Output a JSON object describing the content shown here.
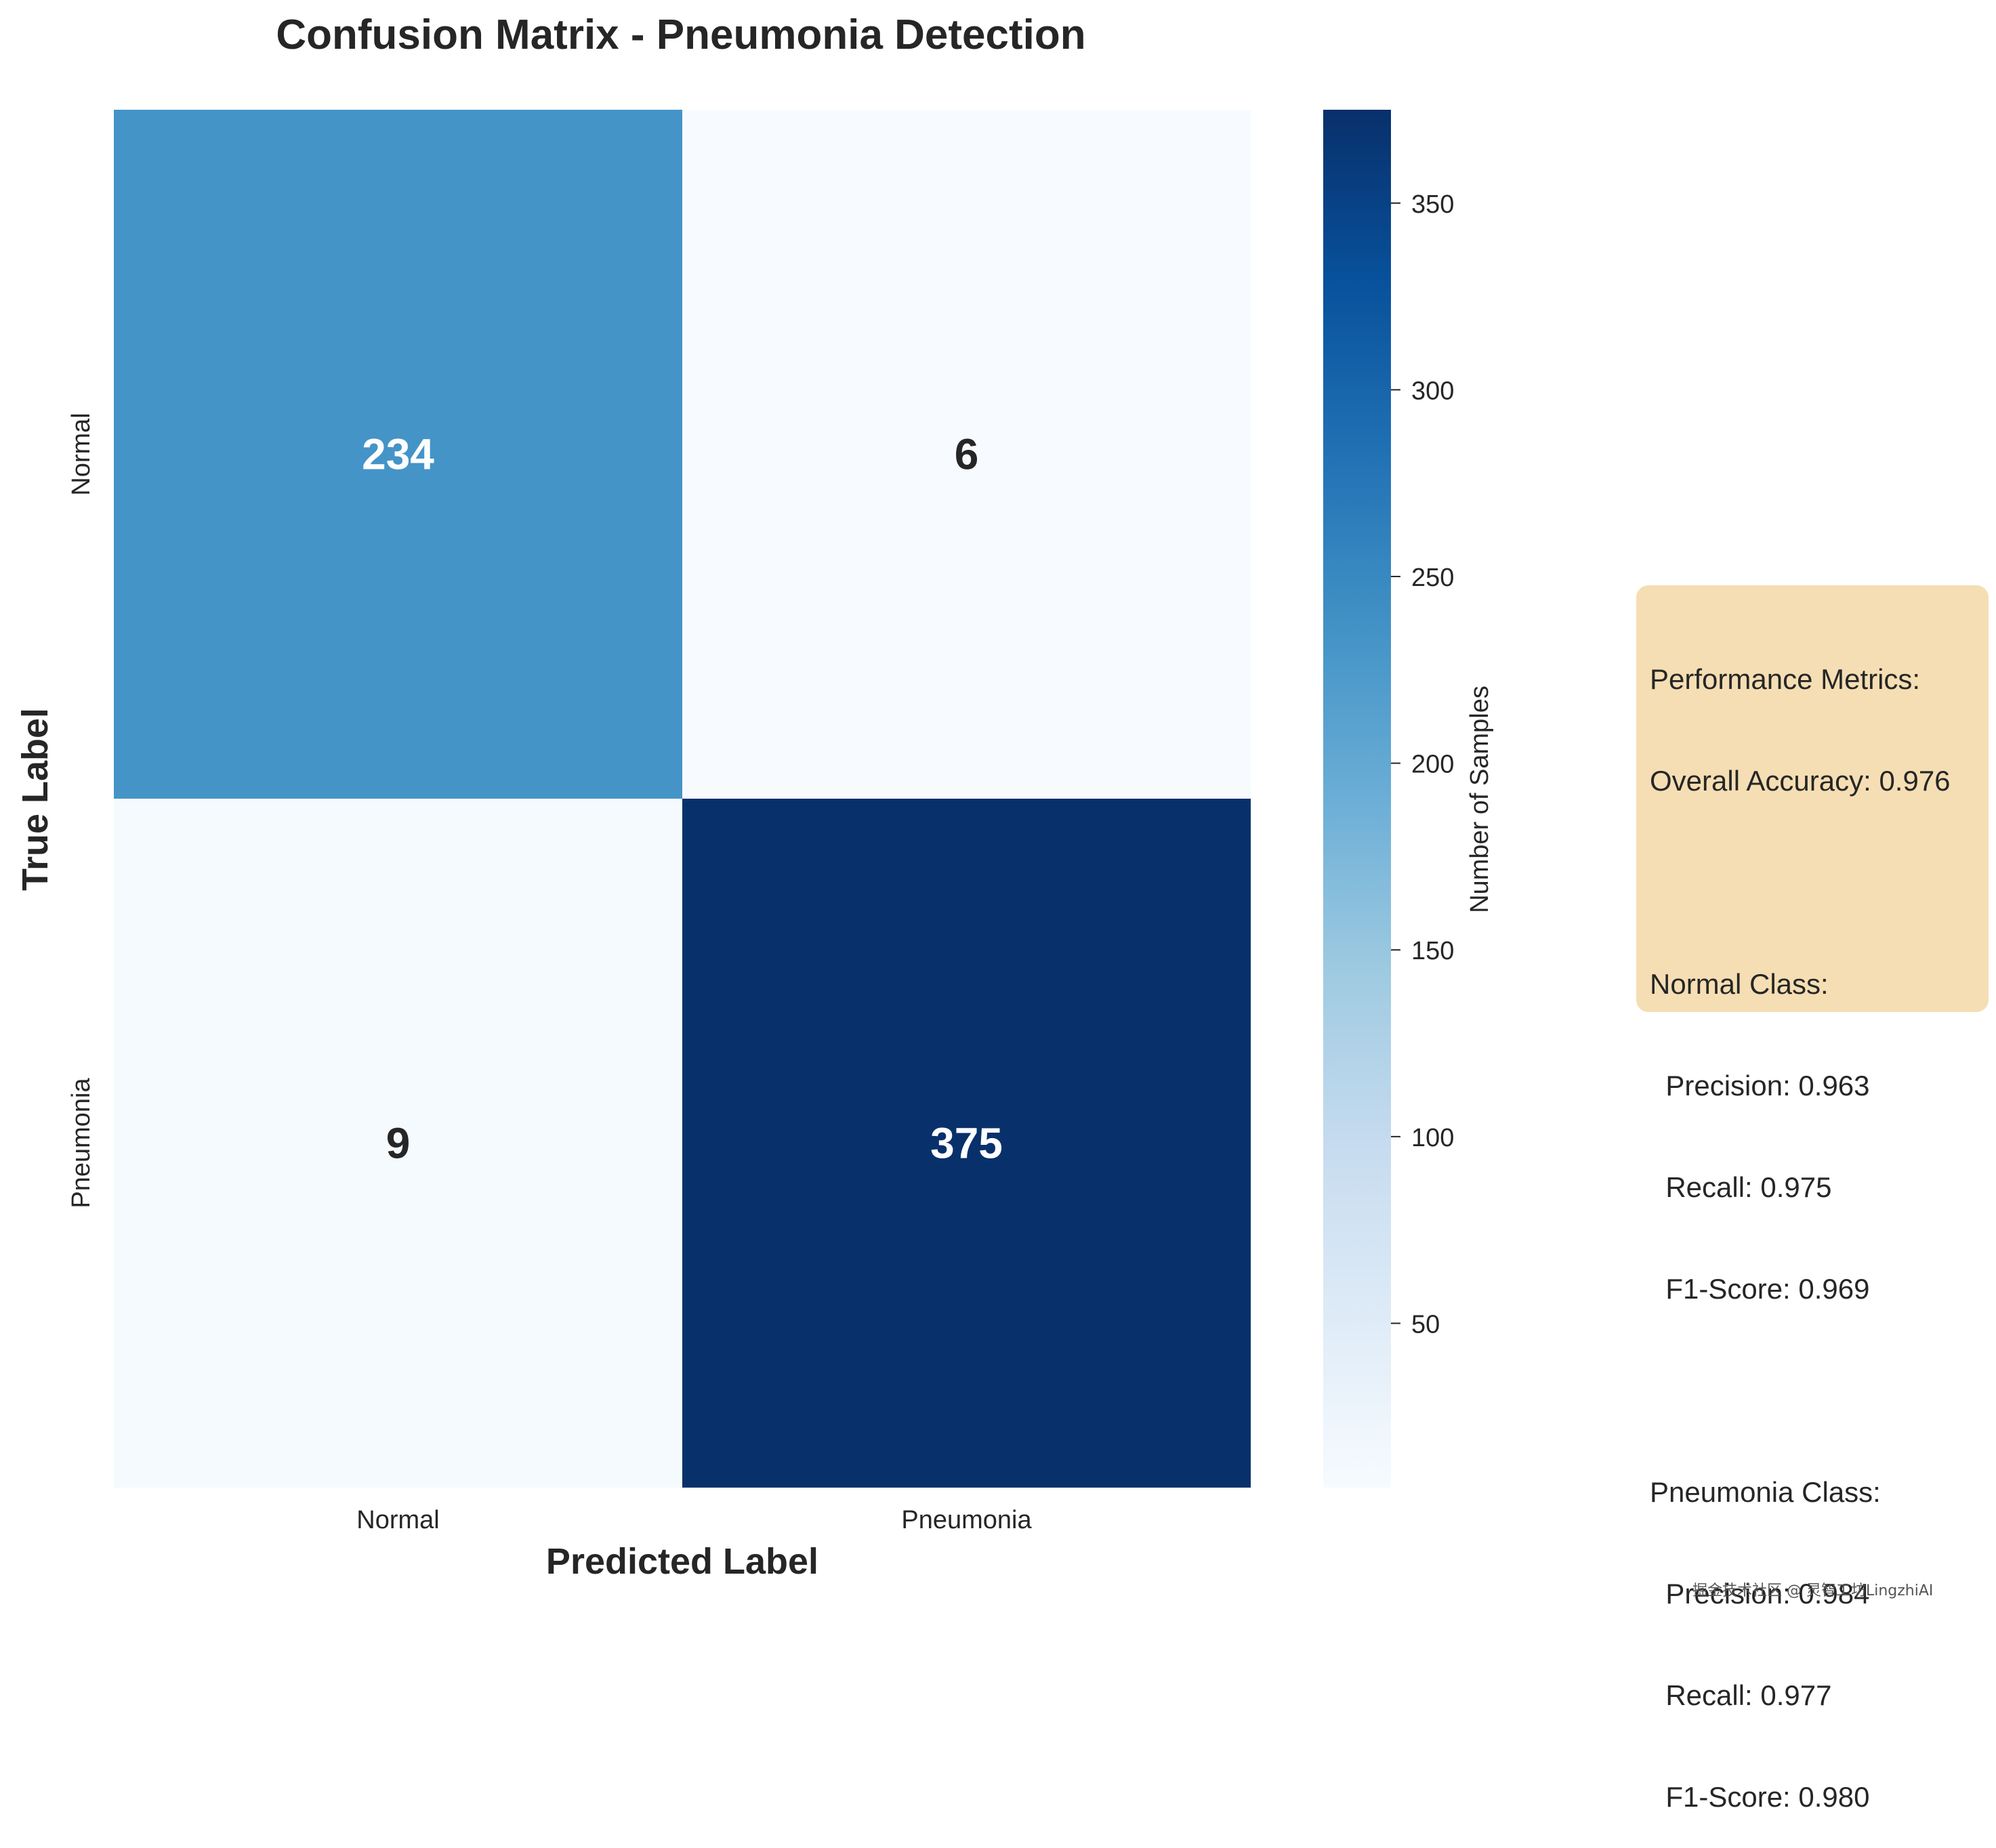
{
  "chart_data": {
    "type": "heatmap",
    "title": "Confusion Matrix - Pneumonia Detection",
    "xlabel": "Predicted Label",
    "ylabel": "True Label",
    "x_categories": [
      "Normal",
      "Pneumonia"
    ],
    "y_categories": [
      "Normal",
      "Pneumonia"
    ],
    "values": [
      [
        234,
        6
      ],
      [
        9,
        375
      ]
    ],
    "colormap": "Blues",
    "colorbar": {
      "label": "Number of Samples",
      "range": [
        6,
        375
      ],
      "ticks": [
        50,
        100,
        150,
        200,
        250,
        300,
        350
      ]
    }
  },
  "metrics": {
    "header": "Performance Metrics:",
    "overall": "Overall Accuracy: 0.976",
    "normal_header": "Normal Class:",
    "normal_precision": "  Precision: 0.963",
    "normal_recall": "  Recall: 0.975",
    "normal_f1": "  F1-Score: 0.969",
    "pneumonia_header": "Pneumonia Class:",
    "pneumonia_precision": "  Precision: 0.984",
    "pneumonia_recall": "  Recall: 0.977",
    "pneumonia_f1": "  F1-Score: 0.980"
  },
  "watermark": "掘金技术社区 @ 灵智工坊LingzhiAI",
  "colors": {
    "box_bg": "#f5deb3",
    "text": "#262626",
    "blues": [
      "#f7fbff",
      "#deebf7",
      "#c6dbef",
      "#9ecae1",
      "#6baed6",
      "#4292c6",
      "#2171b5",
      "#08519c",
      "#08306b"
    ]
  }
}
